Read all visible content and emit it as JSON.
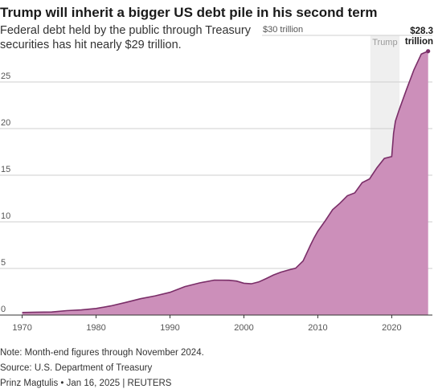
{
  "header": {
    "title": "Trump will inherit a bigger US debt pile in his second term",
    "subtitle": "Federal debt held by the public through Treasury securities has hit nearly $29 trillion."
  },
  "footer": {
    "note": "Note: Month-end figures through November 2024.",
    "source": "Source: U.S. Department of Treasury",
    "credit": "Prinz Magtulis • Jan 16, 2025 | REUTERS"
  },
  "colors": {
    "area_fill": "#cc8fba",
    "line": "#7a2e68",
    "grid": "#cfcfcf",
    "shade": "#efefef",
    "text": "#222222"
  },
  "chart_data": {
    "type": "area",
    "title": "Trump will inherit a bigger US debt pile in his second term",
    "xlabel": "",
    "ylabel": "",
    "xlim": [
      1967,
      2025.5
    ],
    "ylim": [
      0,
      30
    ],
    "x_ticks": [
      1970,
      1980,
      1990,
      2000,
      2010,
      2020
    ],
    "y_ticks": [
      {
        "value": 0,
        "label": "0"
      },
      {
        "value": 5,
        "label": "5"
      },
      {
        "value": 10,
        "label": "10"
      },
      {
        "value": 15,
        "label": "15"
      },
      {
        "value": 20,
        "label": "20"
      },
      {
        "value": 25,
        "label": "25"
      },
      {
        "value": 30,
        "label": "$30 trillion"
      }
    ],
    "grid": true,
    "shaded_period": {
      "label": "Trump",
      "start": 2017.1,
      "end": 2021.05
    },
    "end_label": {
      "value": "$28.3",
      "unit": "trillion"
    },
    "series": [
      {
        "x": [
          1970,
          1972,
          1974,
          1976,
          1978,
          1980,
          1982,
          1984,
          1986,
          1988,
          1990,
          1992,
          1994,
          1996,
          1998,
          1999,
          2000,
          2001,
          2002,
          2003,
          2004,
          2005,
          2006,
          2007,
          2008,
          2009,
          2009.5,
          2010,
          2011,
          2012,
          2013,
          2014,
          2015,
          2016,
          2017,
          2018,
          2019,
          2020,
          2020.25,
          2020.5,
          2021,
          2022,
          2023,
          2024,
          2024.6,
          2024.92
        ],
        "values": [
          0.28,
          0.31,
          0.33,
          0.47,
          0.55,
          0.71,
          0.98,
          1.35,
          1.75,
          2.06,
          2.44,
          3.05,
          3.45,
          3.75,
          3.73,
          3.65,
          3.41,
          3.35,
          3.55,
          3.91,
          4.3,
          4.6,
          4.83,
          5.03,
          5.8,
          7.5,
          8.3,
          9.0,
          10.1,
          11.3,
          12.0,
          12.8,
          13.1,
          14.2,
          14.6,
          15.8,
          16.8,
          17.0,
          19.5,
          20.8,
          22.0,
          24.2,
          26.3,
          28.0,
          28.2,
          28.3
        ]
      }
    ]
  }
}
